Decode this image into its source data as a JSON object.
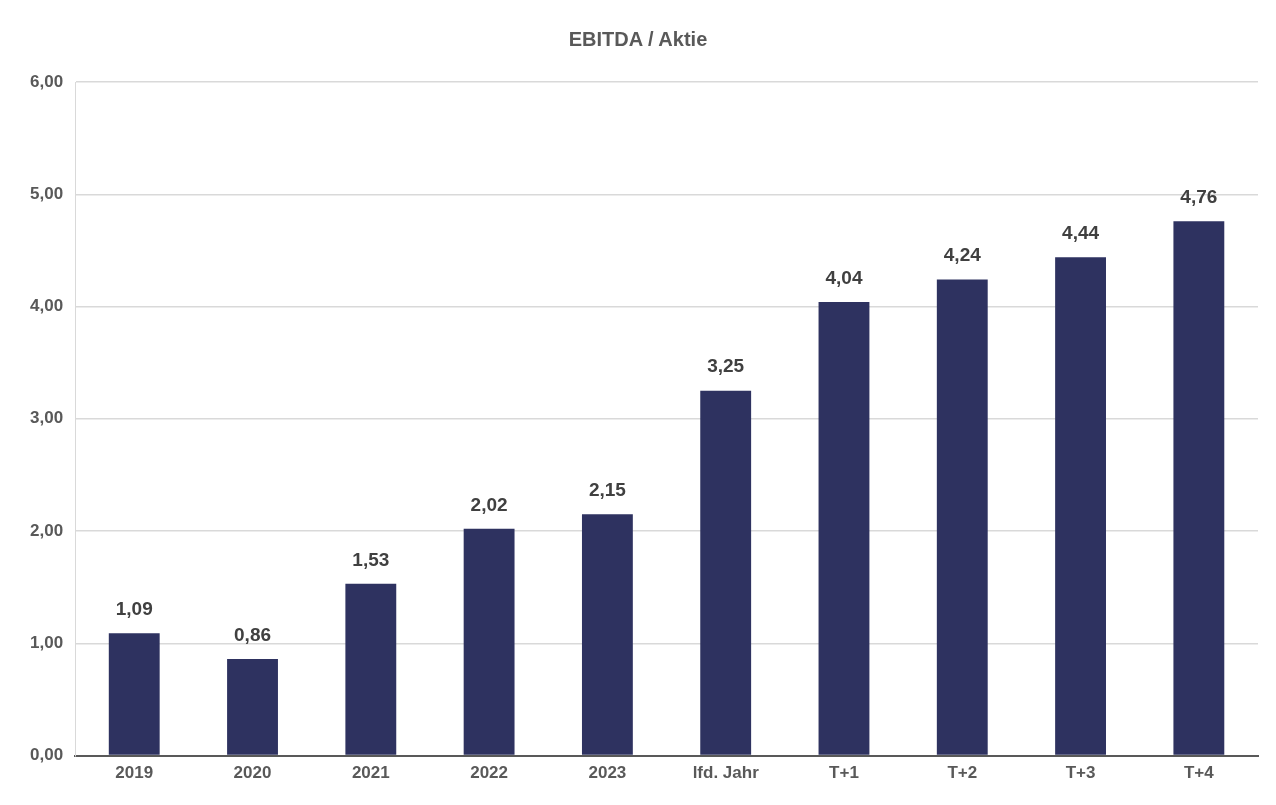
{
  "chart_data": {
    "type": "bar",
    "title": "EBITDA / Aktie",
    "categories": [
      "2019",
      "2020",
      "2021",
      "2022",
      "2023",
      "lfd. Jahr",
      "T+1",
      "T+2",
      "T+3",
      "T+4"
    ],
    "values": [
      1.09,
      0.86,
      1.53,
      2.02,
      2.15,
      3.25,
      4.04,
      4.24,
      4.44,
      4.76
    ],
    "value_labels": [
      "1,09",
      "0,86",
      "1,53",
      "2,02",
      "2,15",
      "3,25",
      "4,04",
      "4,24",
      "4,44",
      "4,76"
    ],
    "color": "#2e3260",
    "ylim": [
      0,
      6
    ],
    "yticks": [
      {
        "value": 0,
        "label": "0,00"
      },
      {
        "value": 1,
        "label": "1,00"
      },
      {
        "value": 2,
        "label": "2,00"
      },
      {
        "value": 3,
        "label": "3,00"
      },
      {
        "value": 4,
        "label": "4,00"
      },
      {
        "value": 5,
        "label": "5,00"
      },
      {
        "value": 6,
        "label": "6,00"
      }
    ],
    "grid": "y",
    "legend": false
  }
}
